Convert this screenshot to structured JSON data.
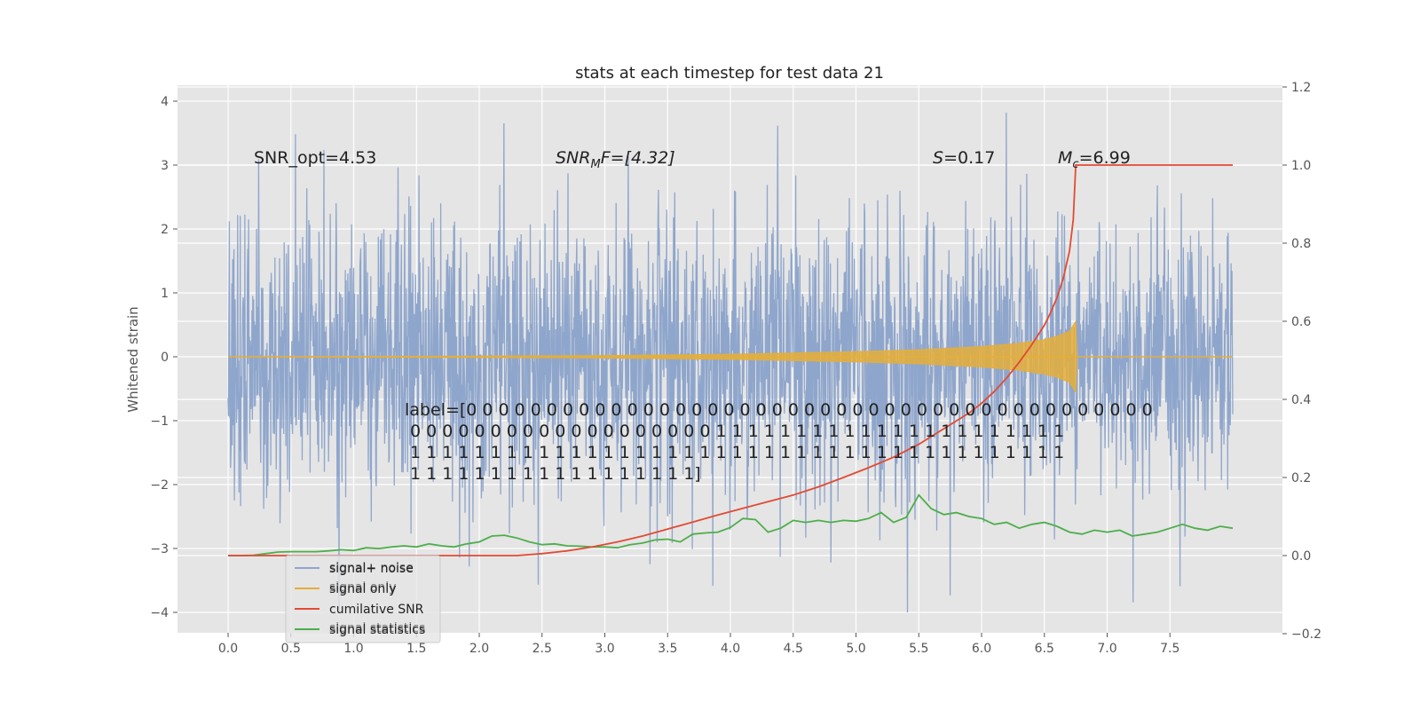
{
  "chart_data": {
    "type": "line",
    "title": "stats at each timestep for test data 21",
    "ylabel": "Whitened strain",
    "xlabel": "",
    "xlim": [
      -0.2,
      8.4
    ],
    "ylim_left": [
      -4.25,
      4.25
    ],
    "ylim_right": [
      -0.2,
      1.2
    ],
    "xticks": [
      "0.0",
      "0.5",
      "1.0",
      "1.5",
      "2.0",
      "2.5",
      "3.0",
      "3.5",
      "4.0",
      "4.5",
      "5.0",
      "5.5",
      "6.0",
      "6.5",
      "7.0",
      "7.5"
    ],
    "yticks_left": [
      "4",
      "3",
      "2",
      "1",
      "0",
      "−1",
      "−2",
      "−3",
      "−4"
    ],
    "yticks_right": [
      "1.2",
      "1.0",
      "0.8",
      "0.6",
      "0.4",
      "0.2",
      "0.0",
      "−0.2"
    ],
    "annotations": {
      "snr_opt": "SNR_opt=4.53",
      "snr_mf_prefix": "SNR",
      "snr_mf_sub": "M",
      "snr_mf_suffix": "F=[4.32]",
      "s_prefix": "S",
      "s_suffix": "=0.17",
      "mc_prefix": "M",
      "mc_sub": "c",
      "mc_suffix": "=6.99",
      "label_lines": [
        "label=[0 0 0 0 0 0 0 0 0 0 0 0 0 0 0 0 0 0 0 0 0 0 0 0 0 0 0 0 0 0 0 0 0 0 0 0 0 0 0 0 0 0 0",
        " 0 0 0 0 0 0 0 0 0 0 0 0 0 0 0 0 0 0 0 1 1 1 1 1 1 1 1 1 1 1 1 1 1 1 1 1 1 1 1 1 1",
        " 1 1 1 1 1 1 1 1 1 1 1 1 1 1 1 1 1 1 1 1 1 1 1 1 1 1 1 1 1 1 1 1 1 1 1 1 1 1 1 1 1",
        " 1 1 1 1 1 1 1 1 1 1 1 1 1 1 1 1 1 1]"
      ]
    },
    "series": [
      {
        "name": "signal+ noise",
        "axis": "left",
        "color": "#8fa6cc",
        "description": "white noise, sigma ~1.1, range roughly -4 to 3.9, t=0 to 8"
      },
      {
        "name": "signal only",
        "axis": "left",
        "color": "#e5ae38",
        "description": "chirp envelope growing to ~0.55 amplitude at t=6.75 then zero",
        "envelope_t": [
          0.0,
          1.0,
          2.0,
          3.0,
          4.0,
          5.0,
          5.5,
          6.0,
          6.3,
          6.5,
          6.6,
          6.7,
          6.75,
          6.76,
          8.0
        ],
        "envelope_amp": [
          0.0,
          0.005,
          0.01,
          0.02,
          0.04,
          0.08,
          0.11,
          0.16,
          0.21,
          0.27,
          0.32,
          0.4,
          0.55,
          0.0,
          0.0
        ]
      },
      {
        "name": "cumilative SNR",
        "axis": "right",
        "color": "#e24a33",
        "x": [
          0.0,
          1.0,
          2.0,
          2.3,
          2.5,
          2.7,
          2.9,
          3.1,
          3.3,
          3.5,
          3.7,
          3.9,
          4.1,
          4.3,
          4.5,
          4.7,
          4.9,
          5.1,
          5.3,
          5.5,
          5.7,
          5.9,
          6.0,
          6.1,
          6.2,
          6.3,
          6.4,
          6.5,
          6.55,
          6.6,
          6.65,
          6.7,
          6.73,
          6.75,
          8.0
        ],
        "y": [
          0.0,
          0.0,
          0.0,
          0.0,
          0.005,
          0.012,
          0.022,
          0.035,
          0.05,
          0.068,
          0.086,
          0.104,
          0.121,
          0.138,
          0.155,
          0.176,
          0.2,
          0.225,
          0.252,
          0.285,
          0.325,
          0.365,
          0.39,
          0.42,
          0.455,
          0.495,
          0.54,
          0.59,
          0.622,
          0.66,
          0.71,
          0.78,
          0.86,
          1.0,
          1.0
        ]
      },
      {
        "name": "signal statistics",
        "axis": "right",
        "color": "#4eae4b",
        "x": [
          0.0,
          0.1,
          0.2,
          0.3,
          0.4,
          0.5,
          0.6,
          0.7,
          0.8,
          0.9,
          1.0,
          1.1,
          1.2,
          1.3,
          1.4,
          1.5,
          1.6,
          1.7,
          1.8,
          1.9,
          2.0,
          2.1,
          2.2,
          2.3,
          2.4,
          2.5,
          2.6,
          2.7,
          2.8,
          2.9,
          3.0,
          3.1,
          3.2,
          3.3,
          3.4,
          3.5,
          3.6,
          3.7,
          3.8,
          3.9,
          4.0,
          4.1,
          4.2,
          4.3,
          4.4,
          4.5,
          4.6,
          4.7,
          4.8,
          4.9,
          5.0,
          5.1,
          5.2,
          5.3,
          5.4,
          5.5,
          5.6,
          5.7,
          5.8,
          5.9,
          6.0,
          6.1,
          6.2,
          6.3,
          6.4,
          6.5,
          6.6,
          6.7,
          6.8,
          6.9,
          7.0,
          7.1,
          7.2,
          7.3,
          7.4,
          7.5,
          7.6,
          7.7,
          7.8,
          7.9,
          8.0
        ],
        "y": [
          0.0,
          0.0,
          0.001,
          0.005,
          0.009,
          0.01,
          0.01,
          0.01,
          0.012,
          0.015,
          0.013,
          0.02,
          0.018,
          0.022,
          0.025,
          0.022,
          0.03,
          0.025,
          0.022,
          0.03,
          0.035,
          0.05,
          0.052,
          0.045,
          0.035,
          0.028,
          0.03,
          0.025,
          0.024,
          0.022,
          0.022,
          0.02,
          0.028,
          0.032,
          0.04,
          0.042,
          0.035,
          0.055,
          0.058,
          0.06,
          0.072,
          0.095,
          0.092,
          0.06,
          0.07,
          0.09,
          0.085,
          0.09,
          0.085,
          0.09,
          0.088,
          0.095,
          0.11,
          0.085,
          0.098,
          0.155,
          0.12,
          0.105,
          0.11,
          0.1,
          0.095,
          0.08,
          0.085,
          0.07,
          0.08,
          0.085,
          0.075,
          0.06,
          0.055,
          0.065,
          0.06,
          0.065,
          0.05,
          0.055,
          0.06,
          0.07,
          0.08,
          0.07,
          0.065,
          0.075,
          0.07
        ]
      }
    ],
    "legend": {
      "placement": "lower-left",
      "entries": [
        "signal+ noise",
        "signal only",
        "cumilative SNR",
        "signal statistics"
      ],
      "ghost_entries": [
        "signal+ noise",
        "signal only",
        "signal statistics"
      ]
    },
    "colors": {
      "background": "#e5e5e5",
      "grid": "#ffffff",
      "noise": "#8fa6cc",
      "signal": "#e5ae38",
      "snr": "#e24a33",
      "stats": "#4eae4b"
    }
  }
}
